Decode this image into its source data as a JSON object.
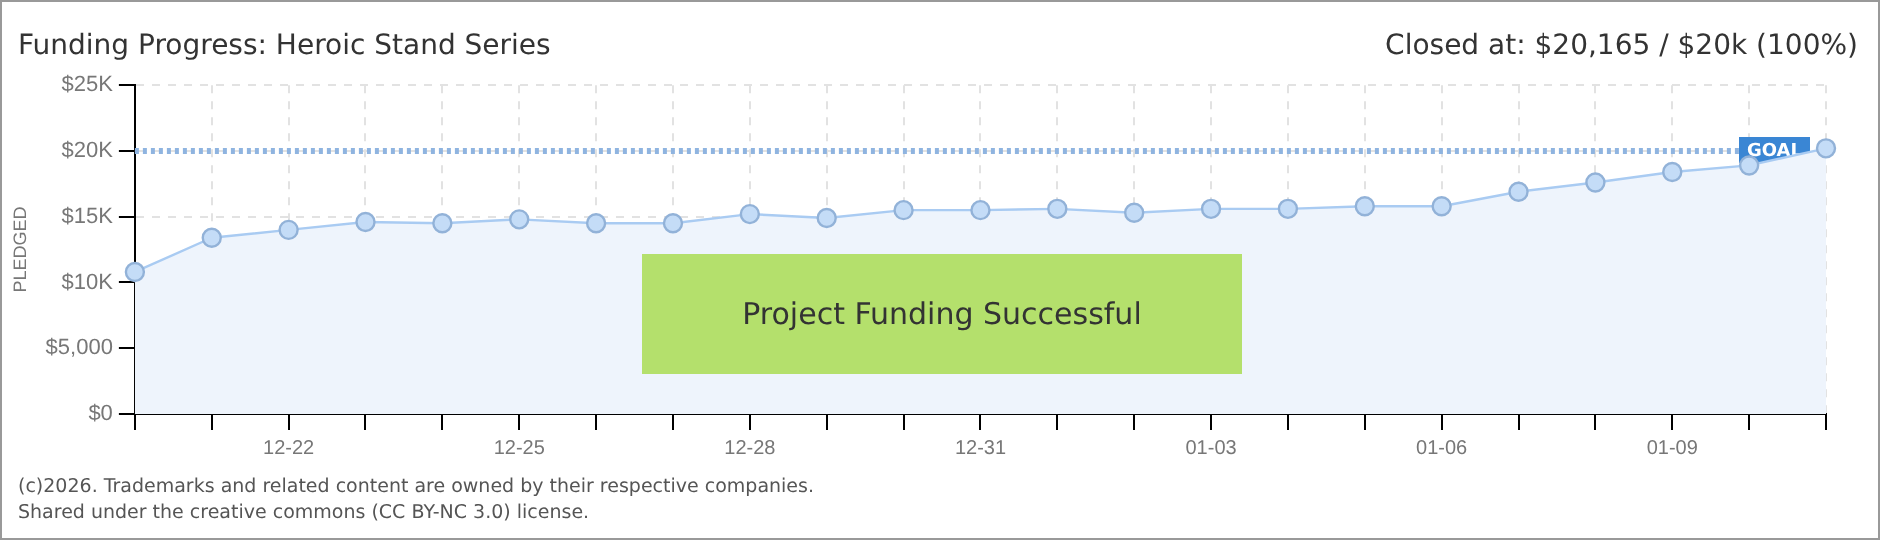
{
  "chart_data": {
    "type": "area",
    "title": "Funding Progress: Heroic Stand Series",
    "subtitle": "Closed at: $20,165 / $20k (100%)",
    "ylabel": "PLEDGED",
    "categories": [
      null,
      null,
      "12-22",
      null,
      null,
      "12-25",
      null,
      null,
      "12-28",
      null,
      null,
      "12-31",
      null,
      null,
      "01-03",
      null,
      null,
      "01-06",
      null,
      null,
      "01-09",
      null,
      null
    ],
    "series": [
      {
        "color": "#a9cbf2",
        "values": [
          10800,
          13400,
          14000,
          14600,
          14500,
          14800,
          14500,
          14500,
          15200,
          14900,
          15500,
          15500,
          15600,
          15300,
          15600,
          15600,
          15800,
          15800,
          16900,
          17600,
          18400,
          18900,
          20200
        ]
      }
    ],
    "ylim": [
      0,
      25000
    ],
    "yticks": [
      {
        "value": 0,
        "label": "$0"
      },
      {
        "value": 5000,
        "label": "$5,000"
      },
      {
        "value": 10000,
        "label": "$10K"
      },
      {
        "value": 15000,
        "label": "$15K"
      },
      {
        "value": 20000,
        "label": "$20K"
      },
      {
        "value": 25000,
        "label": "$25K"
      }
    ],
    "ref_lines": [
      {
        "axis": "y",
        "value": 20000,
        "label": "GOAL",
        "color": "#8fb4e0",
        "line_style": "dotted"
      }
    ],
    "grid": true,
    "marker": "circle",
    "legend": false,
    "annotations": [
      "Project Funding Successful",
      "(c)2026. Trademarks and related content are owned by their respective companies.",
      "Shared under the creative commons (CC BY-NC 3.0) license."
    ]
  }
}
